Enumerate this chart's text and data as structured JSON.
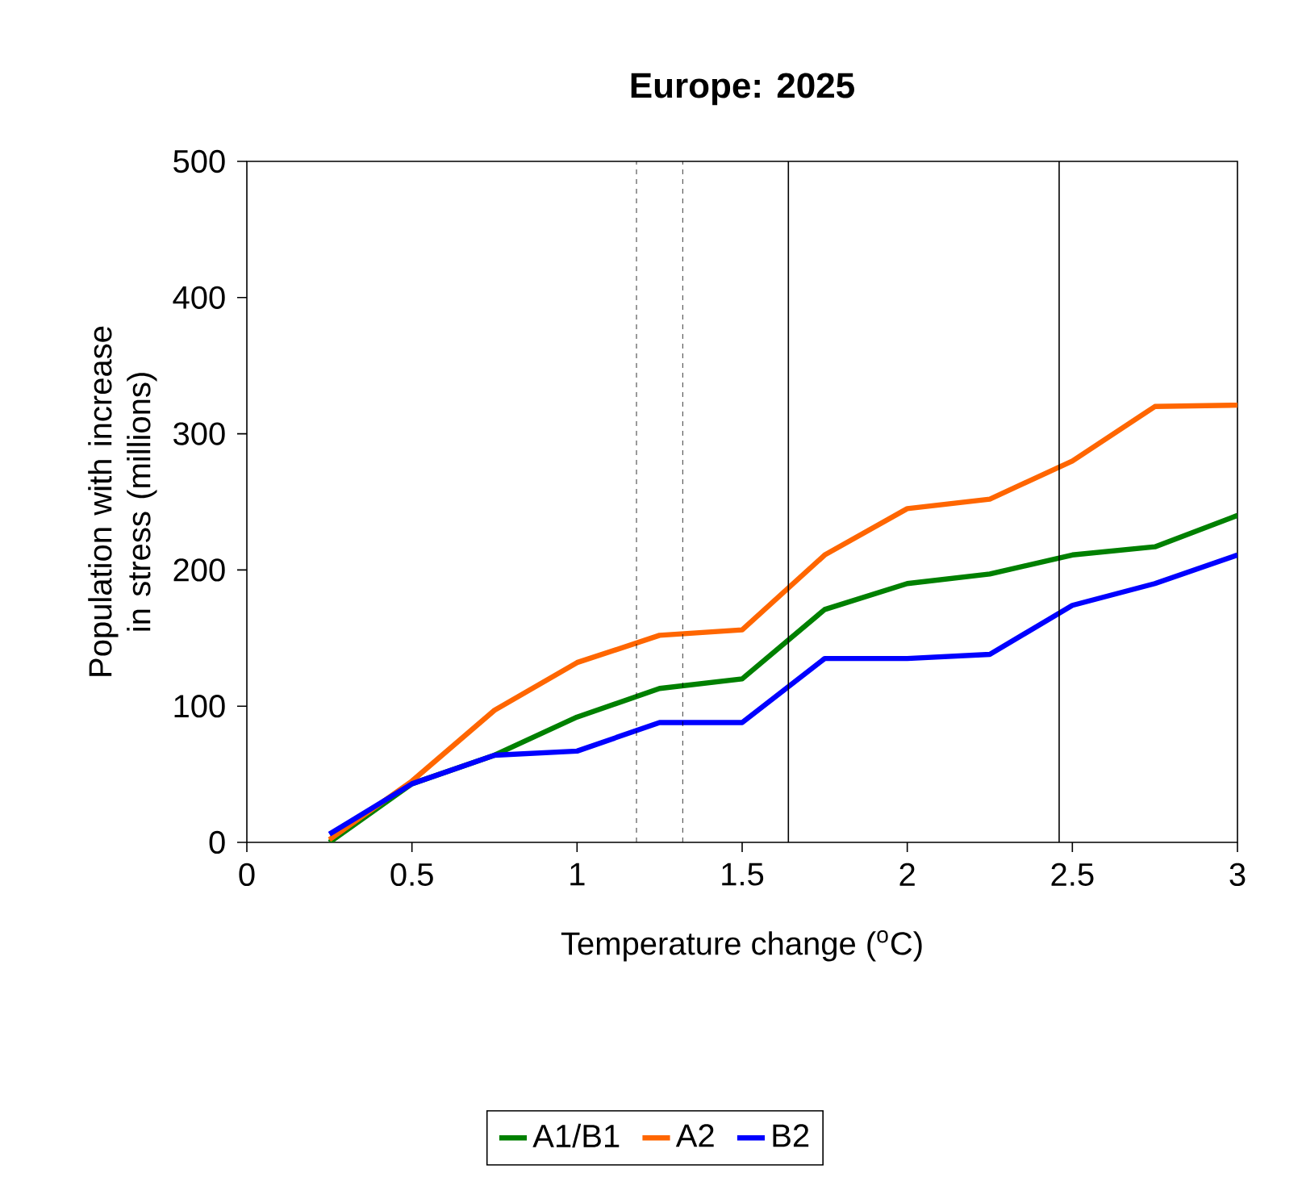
{
  "chart_data": {
    "type": "line",
    "title": "Europe: 2025",
    "xlabel": "Temperature change ($^{o}$C)",
    "ylabel": "Population with increase in stress (millions)",
    "x": [
      0.25,
      0.5,
      0.75,
      1,
      1.25,
      1.5,
      1.75,
      2,
      2.25,
      2.5,
      2.75,
      3
    ],
    "series": [
      {
        "name": "A1/B1",
        "color": "#008000",
        "values": [
          0,
          43,
          64,
          92,
          113,
          120,
          171,
          190,
          197,
          211,
          217,
          240
        ]
      },
      {
        "name": "A2",
        "color": "#ff6600",
        "values": [
          2,
          45,
          97,
          132,
          152,
          156,
          211,
          245,
          252,
          280,
          320,
          321
        ]
      },
      {
        "name": "B2",
        "color": "#0000ff",
        "values": [
          6,
          43,
          64,
          67,
          88,
          88,
          135,
          135,
          138,
          174,
          190,
          211
        ]
      }
    ],
    "xlim": [
      0,
      3
    ],
    "ylim": [
      0,
      500
    ],
    "xticks": [
      0,
      0.5,
      1,
      1.5,
      2,
      2.5,
      3
    ],
    "yticks": [
      0,
      100,
      200,
      300,
      400,
      500
    ],
    "ref_lines": [
      {
        "axis": "x",
        "value": 1.18,
        "line_style": "dashed",
        "color": "#000000"
      },
      {
        "axis": "x",
        "value": 1.32,
        "line_style": "dashed",
        "color": "#000000"
      },
      {
        "axis": "x",
        "value": 1.64,
        "line_style": "solid",
        "color": "#000000"
      },
      {
        "axis": "x",
        "value": 2.46,
        "line_style": "solid",
        "color": "#000000"
      }
    ],
    "grid": false,
    "legend": "bottom",
    "marker": "none",
    "line_style": "solid"
  }
}
